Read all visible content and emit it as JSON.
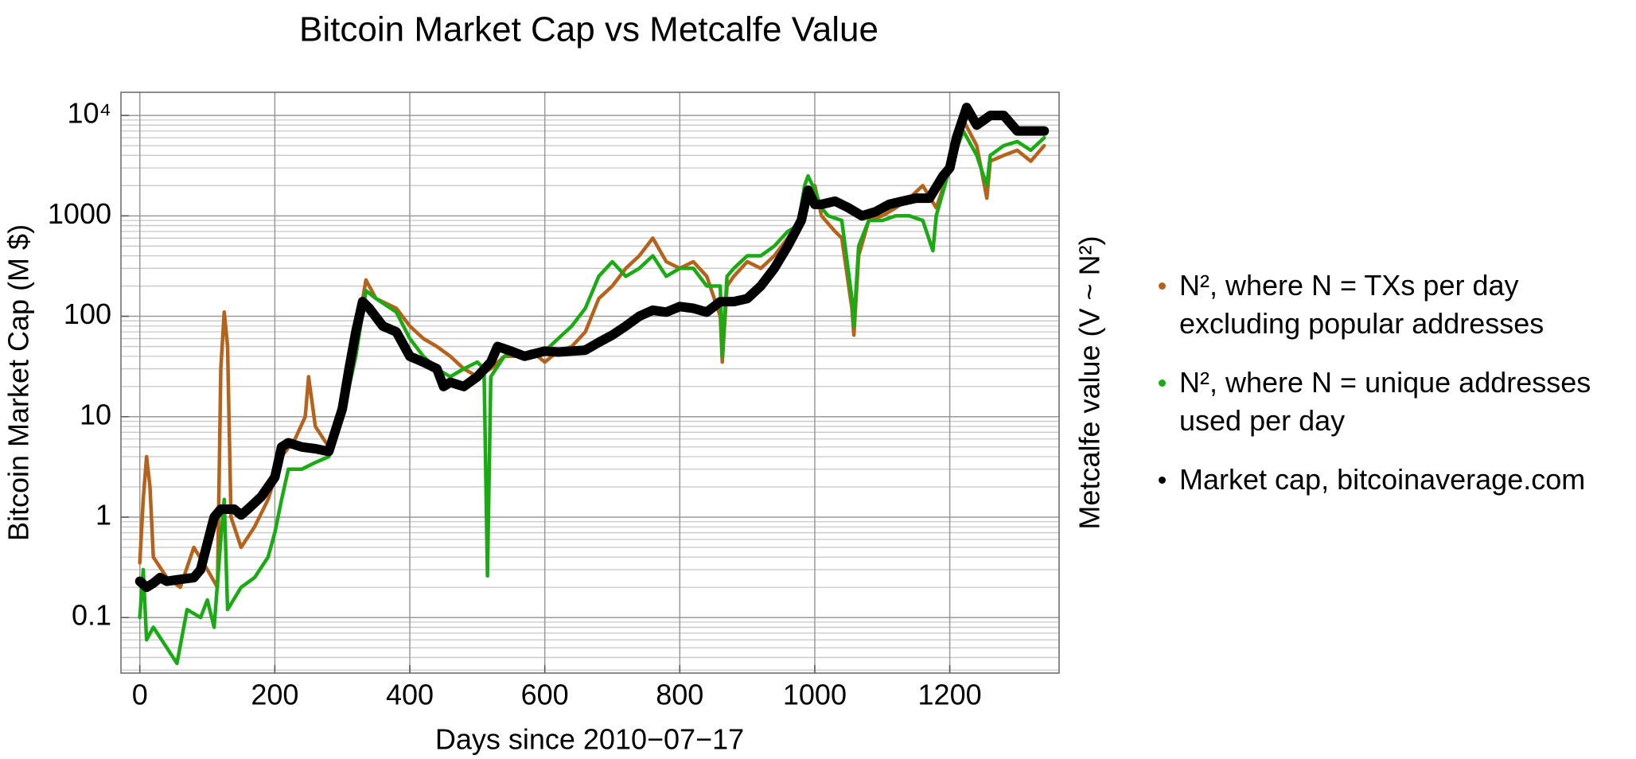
{
  "chart_data": {
    "type": "line",
    "title": "Bitcoin Market Cap vs Metcalfe Value",
    "xlabel": "Days since 2010−07−17",
    "ylabel": "Bitcoin Market Cap (M $)",
    "y2label": "Metcalfe value (V ~ N²)",
    "xlim": [
      -28,
      1362
    ],
    "ylim": [
      0.028,
      17000
    ],
    "ylog": true,
    "grid": true,
    "xticks": [
      0,
      200,
      400,
      600,
      800,
      1000,
      1200
    ],
    "yticks": [
      0.1,
      1,
      10,
      100,
      1000,
      {
        "value": 10000,
        "label": "10⁴"
      }
    ],
    "y_minor_grid": [
      0.03,
      0.04,
      0.05,
      0.06,
      0.07,
      0.08,
      0.09,
      0.2,
      0.3,
      0.4,
      0.5,
      0.6,
      0.7,
      0.8,
      0.9,
      2,
      3,
      4,
      5,
      6,
      7,
      8,
      9,
      20,
      30,
      40,
      50,
      60,
      70,
      80,
      90,
      200,
      300,
      400,
      500,
      600,
      700,
      800,
      900,
      2000,
      3000,
      4000,
      5000,
      6000,
      7000,
      8000,
      9000
    ],
    "legend": "right",
    "series": [
      {
        "name": "N², where N = TXs per day excluding popular addresses",
        "color": "#b5631c",
        "width": 4.5,
        "x": [
          0,
          5,
          10,
          15,
          20,
          40,
          60,
          80,
          100,
          115,
          120,
          125,
          130,
          135,
          150,
          170,
          190,
          210,
          230,
          245,
          250,
          260,
          280,
          300,
          320,
          335,
          350,
          380,
          400,
          420,
          440,
          460,
          480,
          500,
          520,
          540,
          560,
          580,
          600,
          620,
          640,
          660,
          680,
          700,
          720,
          740,
          760,
          780,
          800,
          820,
          840,
          860,
          863,
          870,
          880,
          900,
          920,
          940,
          960,
          980,
          990,
          1000,
          1010,
          1030,
          1040,
          1055,
          1058,
          1065,
          1080,
          1100,
          1120,
          1140,
          1160,
          1180,
          1200,
          1220,
          1240,
          1255,
          1260,
          1280,
          1300,
          1320,
          1340
        ],
        "values": [
          0.35,
          1.5,
          4,
          2,
          0.4,
          0.25,
          0.2,
          0.5,
          0.3,
          0.2,
          30,
          110,
          50,
          1,
          0.5,
          0.8,
          1.5,
          4,
          6,
          10,
          25,
          8,
          5,
          15,
          60,
          230,
          150,
          120,
          80,
          60,
          50,
          40,
          30,
          25,
          30,
          40,
          40,
          45,
          35,
          45,
          50,
          70,
          150,
          200,
          300,
          400,
          600,
          350,
          300,
          350,
          250,
          100,
          35,
          200,
          250,
          350,
          300,
          400,
          600,
          1000,
          1500,
          2000,
          1000,
          700,
          600,
          120,
          65,
          400,
          900,
          1000,
          1200,
          1500,
          2000,
          1200,
          3000,
          9000,
          5000,
          1500,
          3500,
          4000,
          4500,
          3500,
          5000
        ]
      },
      {
        "name": "N², where N = unique addresses used per day",
        "color": "#1aaa14",
        "width": 4.5,
        "x": [
          0,
          5,
          10,
          20,
          40,
          55,
          70,
          90,
          100,
          110,
          120,
          125,
          130,
          150,
          170,
          190,
          200,
          210,
          220,
          240,
          260,
          280,
          300,
          320,
          335,
          350,
          380,
          400,
          420,
          440,
          460,
          480,
          500,
          510,
          515,
          520,
          540,
          560,
          580,
          600,
          620,
          640,
          660,
          680,
          700,
          720,
          740,
          760,
          780,
          800,
          820,
          840,
          860,
          863,
          870,
          880,
          900,
          920,
          940,
          960,
          975,
          985,
          990,
          1000,
          1010,
          1020,
          1040,
          1055,
          1058,
          1065,
          1080,
          1100,
          1120,
          1140,
          1160,
          1175,
          1180,
          1200,
          1220,
          1240,
          1255,
          1260,
          1280,
          1300,
          1320,
          1340
        ],
        "values": [
          0.1,
          0.3,
          0.06,
          0.08,
          0.05,
          0.035,
          0.12,
          0.1,
          0.15,
          0.08,
          0.6,
          1.5,
          0.12,
          0.2,
          0.25,
          0.4,
          0.7,
          1.5,
          3,
          3,
          3.5,
          4,
          10,
          40,
          180,
          150,
          110,
          60,
          40,
          30,
          25,
          30,
          35,
          30,
          0.26,
          25,
          40,
          45,
          40,
          45,
          60,
          80,
          120,
          250,
          350,
          250,
          300,
          400,
          250,
          300,
          300,
          200,
          200,
          40,
          250,
          300,
          400,
          400,
          500,
          700,
          800,
          2000,
          2500,
          1800,
          1200,
          1000,
          900,
          150,
          80,
          500,
          900,
          900,
          1000,
          1000,
          900,
          450,
          1000,
          3000,
          7000,
          4000,
          2000,
          4000,
          5000,
          5500,
          4500,
          6000
        ]
      },
      {
        "name": "Market cap, bitcoinaverage.com",
        "color": "#000000",
        "width": 12,
        "x": [
          0,
          10,
          20,
          30,
          40,
          60,
          80,
          90,
          100,
          110,
          120,
          140,
          150,
          160,
          180,
          200,
          210,
          220,
          240,
          260,
          280,
          300,
          310,
          320,
          330,
          340,
          360,
          380,
          400,
          420,
          440,
          450,
          460,
          480,
          500,
          520,
          530,
          550,
          570,
          600,
          620,
          640,
          660,
          680,
          700,
          720,
          740,
          760,
          780,
          800,
          820,
          840,
          860,
          880,
          900,
          920,
          940,
          960,
          980,
          990,
          1000,
          1010,
          1030,
          1050,
          1070,
          1090,
          1110,
          1130,
          1150,
          1170,
          1190,
          1200,
          1210,
          1225,
          1240,
          1260,
          1280,
          1300,
          1320,
          1340
        ],
        "values": [
          0.23,
          0.2,
          0.22,
          0.25,
          0.23,
          0.24,
          0.25,
          0.3,
          0.55,
          1.0,
          1.2,
          1.2,
          1.05,
          1.2,
          1.6,
          2.5,
          5,
          5.5,
          5,
          4.8,
          4.5,
          12,
          30,
          70,
          140,
          120,
          80,
          70,
          40,
          35,
          30,
          20,
          22,
          20,
          25,
          35,
          50,
          45,
          40,
          45,
          44,
          45,
          46,
          55,
          65,
          80,
          100,
          115,
          110,
          125,
          120,
          110,
          140,
          140,
          150,
          200,
          300,
          500,
          900,
          1800,
          1300,
          1300,
          1400,
          1200,
          1000,
          1100,
          1300,
          1400,
          1500,
          1500,
          2500,
          3000,
          6000,
          12000,
          8000,
          10000,
          10000,
          7000,
          7000,
          7000
        ]
      }
    ]
  }
}
